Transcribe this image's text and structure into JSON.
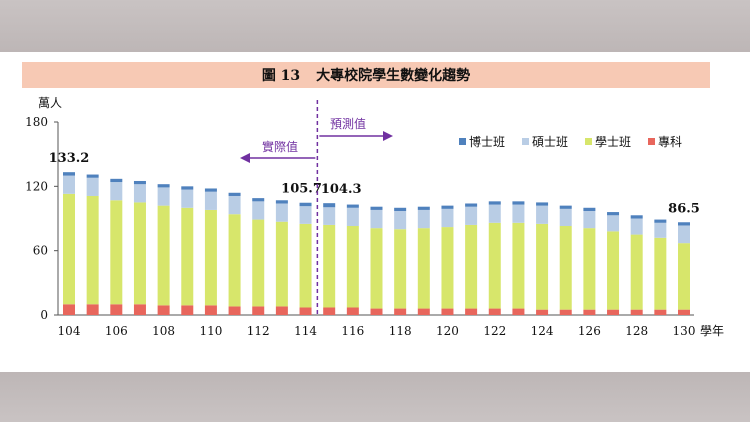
{
  "figure_title": {
    "number": "圖 13",
    "text": "大專校院學生數變化趨勢"
  },
  "colors": {
    "phd": "#4f81bd",
    "masters": "#b9cde5",
    "bachelor": "#d7e66b",
    "junior_college": "#e8665c",
    "divider": "#7030a0"
  },
  "chart_data": {
    "type": "bar",
    "stacked": true,
    "ylabel": "萬人",
    "xlabel": "學年",
    "ylim": [
      0,
      180
    ],
    "yticks": [
      0,
      60,
      120,
      180
    ],
    "x": [
      104,
      105,
      106,
      107,
      108,
      109,
      110,
      111,
      112,
      113,
      114,
      115,
      116,
      117,
      118,
      119,
      120,
      121,
      122,
      123,
      124,
      125,
      126,
      127,
      128,
      129,
      130
    ],
    "xticks": [
      104,
      106,
      108,
      110,
      112,
      114,
      116,
      118,
      120,
      122,
      124,
      126,
      128,
      130
    ],
    "series": [
      {
        "name": "專科",
        "key": "junior_college",
        "values": [
          10,
          10,
          10,
          10,
          9,
          9,
          9,
          8,
          8,
          8,
          7,
          7,
          7,
          6,
          6,
          6,
          6,
          6,
          6,
          6,
          5,
          5,
          5,
          5,
          5,
          5,
          5
        ]
      },
      {
        "name": "學士班",
        "key": "bachelor",
        "values": [
          103.0,
          101,
          97,
          95,
          93,
          91,
          89,
          86,
          81,
          79,
          78,
          77,
          76,
          75,
          74,
          75,
          76,
          78,
          80,
          80,
          80,
          78,
          76,
          73,
          70,
          67,
          62
        ]
      },
      {
        "name": "碩士班",
        "key": "masters",
        "values": [
          17.0,
          17,
          17,
          17,
          17,
          17,
          17,
          17,
          17,
          17,
          16.5,
          16.5,
          17,
          17,
          17,
          17,
          17,
          17,
          17,
          17,
          17,
          16,
          16,
          15,
          15,
          14,
          16.5
        ]
      },
      {
        "name": "博士班",
        "key": "phd",
        "values": [
          3.2,
          3,
          3,
          3,
          3,
          3,
          3,
          3,
          3,
          3,
          3.2,
          3.8,
          3,
          3,
          3,
          3,
          3,
          3,
          3,
          3,
          3,
          3,
          3,
          3,
          3,
          3,
          3
        ]
      }
    ],
    "legend_order": [
      "博士班",
      "碩士班",
      "學士班",
      "專科"
    ],
    "legend_position": "top-right",
    "data_labels": [
      {
        "x": 104,
        "text": "133.2"
      },
      {
        "x": 114,
        "text": "105.7"
      },
      {
        "x": 115,
        "text": "104.3"
      },
      {
        "x": 130,
        "text": "86.5"
      }
    ],
    "divider_after_x": 114,
    "annotations": {
      "actual": "實際值",
      "forecast": "預測值"
    }
  }
}
